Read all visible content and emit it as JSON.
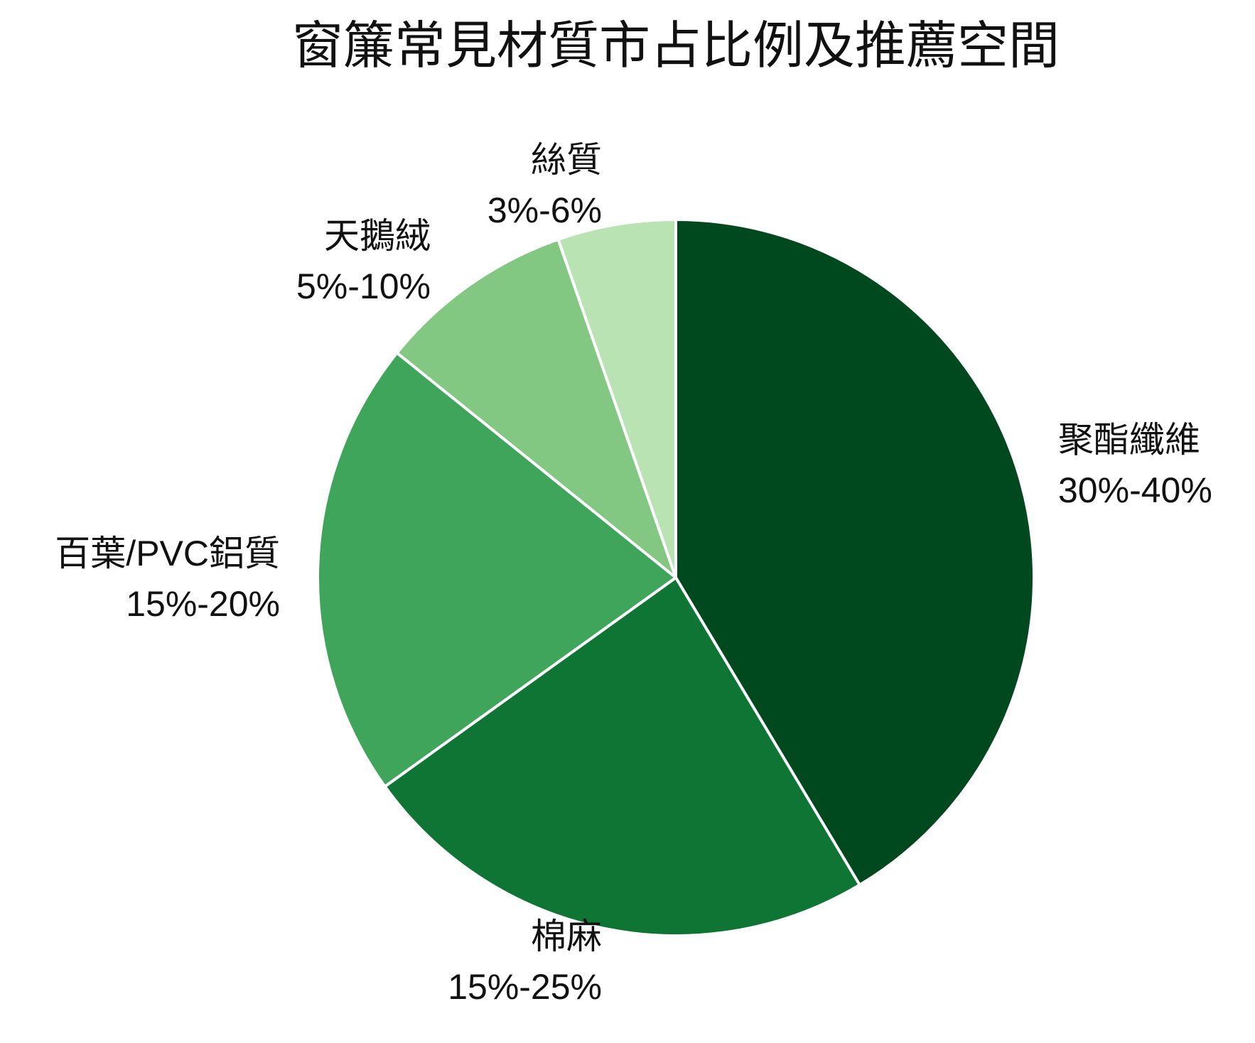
{
  "chart_data": {
    "type": "pie",
    "title": "窗簾常見材質市占比例及推薦空間",
    "categories": [
      "聚酯纖維",
      "棉麻",
      "百葉/PVC鋁質",
      "天鵝絨",
      "絲質"
    ],
    "values": [
      35,
      20,
      17.5,
      7.5,
      4.5
    ],
    "value_labels": [
      "30%-40%",
      "15%-25%",
      "15%-20%",
      "5%-10%",
      "3%-6%"
    ],
    "colors": [
      "#00481e",
      "#0e7535",
      "#3ea55a",
      "#83c882",
      "#b9e3b3"
    ],
    "start_angle": 0,
    "direction": "clockwise"
  }
}
